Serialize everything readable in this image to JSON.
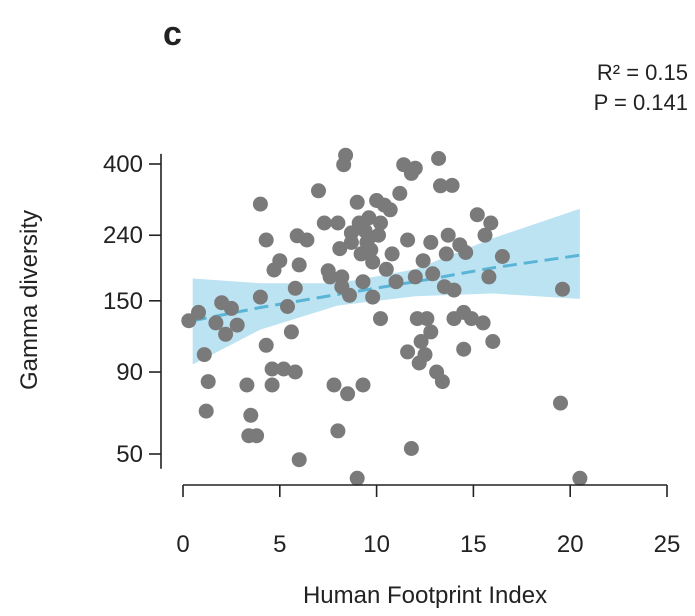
{
  "panel_label": "c",
  "stats": {
    "r2": "R² = 0.15",
    "p": "P = 0.141"
  },
  "colors": {
    "points": "#7a7a7a",
    "band": "#a6d9ee",
    "fit": "#5ab4d6",
    "axis": "#222222"
  },
  "chart_data": {
    "type": "scatter",
    "xlabel": "Human Footprint Index",
    "ylabel": "Gamma diversity",
    "x_scale": "linear",
    "y_scale": "log",
    "xlim": [
      0,
      25
    ],
    "ylim": [
      45,
      430
    ],
    "x_ticks": [
      0,
      5,
      10,
      15,
      20,
      25
    ],
    "y_ticks": [
      50,
      90,
      150,
      240,
      400
    ],
    "grid": false,
    "points": [
      {
        "x": 0.3,
        "y": 130
      },
      {
        "x": 0.8,
        "y": 138
      },
      {
        "x": 1.1,
        "y": 102
      },
      {
        "x": 1.3,
        "y": 84
      },
      {
        "x": 1.2,
        "y": 68
      },
      {
        "x": 1.7,
        "y": 128
      },
      {
        "x": 2.0,
        "y": 148
      },
      {
        "x": 2.2,
        "y": 118
      },
      {
        "x": 2.5,
        "y": 142
      },
      {
        "x": 2.8,
        "y": 126
      },
      {
        "x": 3.3,
        "y": 82
      },
      {
        "x": 3.5,
        "y": 66
      },
      {
        "x": 3.4,
        "y": 57
      },
      {
        "x": 3.8,
        "y": 57
      },
      {
        "x": 4.0,
        "y": 154
      },
      {
        "x": 4.0,
        "y": 300
      },
      {
        "x": 4.3,
        "y": 232
      },
      {
        "x": 4.3,
        "y": 109
      },
      {
        "x": 4.6,
        "y": 82
      },
      {
        "x": 4.6,
        "y": 92
      },
      {
        "x": 4.7,
        "y": 187
      },
      {
        "x": 5.0,
        "y": 200
      },
      {
        "x": 5.2,
        "y": 92
      },
      {
        "x": 5.4,
        "y": 144
      },
      {
        "x": 5.6,
        "y": 120
      },
      {
        "x": 5.8,
        "y": 164
      },
      {
        "x": 5.8,
        "y": 90
      },
      {
        "x": 5.9,
        "y": 239
      },
      {
        "x": 6.0,
        "y": 194
      },
      {
        "x": 6.0,
        "y": 48
      },
      {
        "x": 6.4,
        "y": 232
      },
      {
        "x": 7.0,
        "y": 330
      },
      {
        "x": 7.3,
        "y": 262
      },
      {
        "x": 7.5,
        "y": 186
      },
      {
        "x": 7.6,
        "y": 178
      },
      {
        "x": 7.8,
        "y": 82
      },
      {
        "x": 8.0,
        "y": 262
      },
      {
        "x": 8.0,
        "y": 59
      },
      {
        "x": 8.1,
        "y": 218
      },
      {
        "x": 8.2,
        "y": 178
      },
      {
        "x": 8.2,
        "y": 166
      },
      {
        "x": 8.3,
        "y": 398
      },
      {
        "x": 8.4,
        "y": 426
      },
      {
        "x": 8.5,
        "y": 77
      },
      {
        "x": 8.6,
        "y": 156
      },
      {
        "x": 8.7,
        "y": 228
      },
      {
        "x": 8.7,
        "y": 244
      },
      {
        "x": 9.0,
        "y": 304
      },
      {
        "x": 9.1,
        "y": 262
      },
      {
        "x": 9.2,
        "y": 210
      },
      {
        "x": 9.3,
        "y": 172
      },
      {
        "x": 9.3,
        "y": 82
      },
      {
        "x": 9.0,
        "y": 42
      },
      {
        "x": 9.4,
        "y": 248
      },
      {
        "x": 9.5,
        "y": 228
      },
      {
        "x": 9.6,
        "y": 272
      },
      {
        "x": 9.6,
        "y": 236
      },
      {
        "x": 9.7,
        "y": 216
      },
      {
        "x": 9.8,
        "y": 198
      },
      {
        "x": 9.8,
        "y": 154
      },
      {
        "x": 10.0,
        "y": 308
      },
      {
        "x": 10.1,
        "y": 240
      },
      {
        "x": 10.2,
        "y": 262
      },
      {
        "x": 10.2,
        "y": 132
      },
      {
        "x": 10.4,
        "y": 298
      },
      {
        "x": 10.5,
        "y": 188
      },
      {
        "x": 10.7,
        "y": 288
      },
      {
        "x": 10.8,
        "y": 210
      },
      {
        "x": 11.0,
        "y": 172
      },
      {
        "x": 11.2,
        "y": 324
      },
      {
        "x": 11.4,
        "y": 398
      },
      {
        "x": 11.6,
        "y": 232
      },
      {
        "x": 11.6,
        "y": 104
      },
      {
        "x": 11.8,
        "y": 52
      },
      {
        "x": 11.8,
        "y": 374
      },
      {
        "x": 12.0,
        "y": 388
      },
      {
        "x": 12.0,
        "y": 178
      },
      {
        "x": 12.1,
        "y": 132
      },
      {
        "x": 12.2,
        "y": 96
      },
      {
        "x": 12.3,
        "y": 112
      },
      {
        "x": 12.4,
        "y": 200
      },
      {
        "x": 12.5,
        "y": 102
      },
      {
        "x": 12.6,
        "y": 132
      },
      {
        "x": 12.8,
        "y": 120
      },
      {
        "x": 12.8,
        "y": 228
      },
      {
        "x": 12.9,
        "y": 182
      },
      {
        "x": 13.1,
        "y": 90
      },
      {
        "x": 13.2,
        "y": 416
      },
      {
        "x": 13.3,
        "y": 342
      },
      {
        "x": 13.4,
        "y": 84
      },
      {
        "x": 13.5,
        "y": 166
      },
      {
        "x": 13.6,
        "y": 210
      },
      {
        "x": 13.7,
        "y": 240
      },
      {
        "x": 13.9,
        "y": 343
      },
      {
        "x": 14.0,
        "y": 162
      },
      {
        "x": 14.0,
        "y": 132
      },
      {
        "x": 14.3,
        "y": 224
      },
      {
        "x": 14.5,
        "y": 106
      },
      {
        "x": 14.5,
        "y": 138
      },
      {
        "x": 14.6,
        "y": 212
      },
      {
        "x": 14.9,
        "y": 132
      },
      {
        "x": 15.2,
        "y": 278
      },
      {
        "x": 15.5,
        "y": 128
      },
      {
        "x": 15.6,
        "y": 240
      },
      {
        "x": 15.8,
        "y": 178
      },
      {
        "x": 15.9,
        "y": 262
      },
      {
        "x": 16.0,
        "y": 112
      },
      {
        "x": 16.5,
        "y": 206
      },
      {
        "x": 19.5,
        "y": 72
      },
      {
        "x": 19.6,
        "y": 163
      },
      {
        "x": 20.5,
        "y": 42
      }
    ],
    "fit": {
      "x": [
        0.5,
        4,
        8,
        12,
        16,
        20.5
      ],
      "y": [
        130,
        143,
        157,
        172,
        190,
        208
      ],
      "lower": [
        95,
        122,
        145,
        155,
        158,
        152
      ],
      "upper": [
        176,
        170,
        170,
        188,
        235,
        290
      ]
    }
  }
}
